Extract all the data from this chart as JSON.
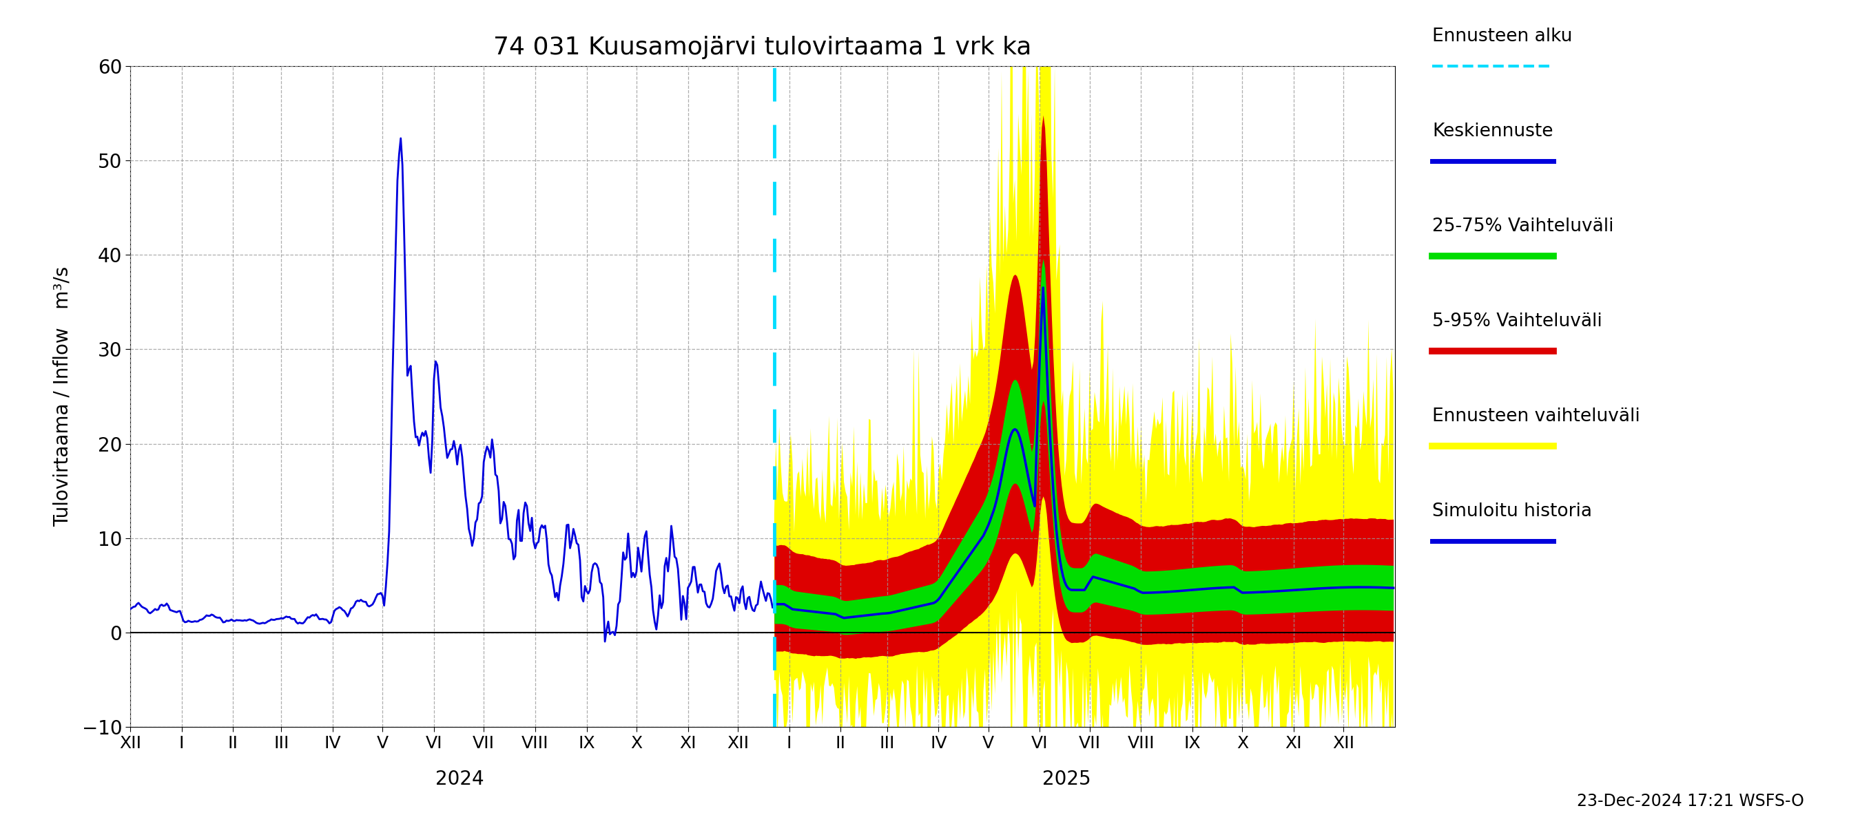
{
  "title": "74 031 Kuusamojärvi tulovirtaama 1 vrk ka",
  "ylabel": "Tulovirtaama / Inflow   m³/s",
  "ylim": [
    -10,
    60
  ],
  "yticks": [
    -10,
    0,
    10,
    20,
    30,
    40,
    50,
    60
  ],
  "background_color": "#ffffff",
  "grid_color": "#999999",
  "forecast_line_color": "#00ddff",
  "history_color": "#0000dd",
  "median_color": "#0000dd",
  "q25_75_color": "#00dd00",
  "q5_95_color": "#dd0000",
  "ensemble_color": "#ffff00",
  "timestamp_label": "23-Dec-2024 17:21 WSFS-O",
  "legend_items": [
    {
      "label": "Ennusteen alku",
      "color": "#00ddff",
      "lw": 3,
      "ls": "--"
    },
    {
      "label": "Keskiennuste",
      "color": "#0000dd",
      "lw": 5,
      "ls": "-"
    },
    {
      "label": "25-75% Vaihteluväli",
      "color": "#00dd00",
      "lw": 7,
      "ls": "-"
    },
    {
      "label": "5-95% Vaihteluväli",
      "color": "#dd0000",
      "lw": 7,
      "ls": "-"
    },
    {
      "label": "Ennusteen vaihteluväli",
      "color": "#ffff00",
      "lw": 7,
      "ls": "-"
    },
    {
      "label": "Simuloitu historia",
      "color": "#0000dd",
      "lw": 5,
      "ls": "-"
    }
  ]
}
